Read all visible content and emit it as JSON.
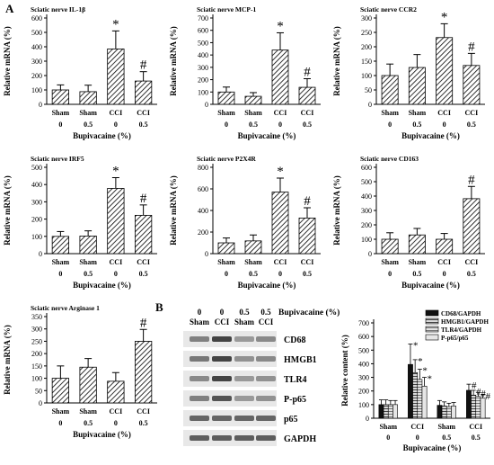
{
  "panel_labels": {
    "a": "A",
    "b": "B"
  },
  "colors": {
    "hatch": "#000000",
    "bar_fill": "#ffffff",
    "blot_bg": "#e8e8e8",
    "band": "#3a3a3a"
  },
  "chart_data": [
    {
      "type": "bar",
      "title": "Sciatic nerve IL-1β",
      "ylabel": "Relative mRNA (%)",
      "xlabel": "Bupivacaine (%)",
      "ylim": [
        0,
        600
      ],
      "yticks": [
        0,
        100,
        200,
        300,
        400,
        500,
        600
      ],
      "categories": [
        {
          "group": "Sham",
          "dose": "0"
        },
        {
          "group": "Sham",
          "dose": "0.5"
        },
        {
          "group": "CCI",
          "dose": "0"
        },
        {
          "group": "CCI",
          "dose": "0.5"
        }
      ],
      "values": [
        100,
        88,
        385,
        162
      ],
      "errors": [
        35,
        45,
        125,
        65
      ],
      "annotations": [
        "",
        "",
        "*",
        "#"
      ]
    },
    {
      "type": "bar",
      "title": "Sciatic nerve MCP-1",
      "ylabel": "Relative mRNA (%)",
      "xlabel": "Bupivacaine (%)",
      "ylim": [
        0,
        700
      ],
      "yticks": [
        0,
        100,
        200,
        300,
        400,
        500,
        600,
        700
      ],
      "categories": [
        {
          "group": "Sham",
          "dose": "0"
        },
        {
          "group": "Sham",
          "dose": "0.5"
        },
        {
          "group": "CCI",
          "dose": "0"
        },
        {
          "group": "CCI",
          "dose": "0.5"
        }
      ],
      "values": [
        100,
        65,
        440,
        138
      ],
      "errors": [
        40,
        30,
        140,
        70
      ],
      "annotations": [
        "",
        "",
        "*",
        "#"
      ]
    },
    {
      "type": "bar",
      "title": "Sciatic nerve CCR2",
      "ylabel": "Relative mRNA (%)",
      "xlabel": "Bupivacaine (%)",
      "ylim": [
        0,
        300
      ],
      "yticks": [
        0,
        50,
        100,
        150,
        200,
        250,
        300
      ],
      "categories": [
        {
          "group": "Sham",
          "dose": "0"
        },
        {
          "group": "Sham",
          "dose": "0.5"
        },
        {
          "group": "CCI",
          "dose": "0"
        },
        {
          "group": "CCI",
          "dose": "0.5"
        }
      ],
      "values": [
        100,
        128,
        232,
        135
      ],
      "errors": [
        40,
        45,
        48,
        42
      ],
      "annotations": [
        "",
        "",
        "*",
        "#"
      ]
    },
    {
      "type": "bar",
      "title": "Sciatic nerve IRF5",
      "ylabel": "Relative mRNA (%)",
      "xlabel": "Bupivacaine (%)",
      "ylim": [
        0,
        500
      ],
      "yticks": [
        0,
        100,
        200,
        300,
        400,
        500
      ],
      "categories": [
        {
          "group": "Sham",
          "dose": "0"
        },
        {
          "group": "Sham",
          "dose": "0.5"
        },
        {
          "group": "CCI",
          "dose": "0"
        },
        {
          "group": "CCI",
          "dose": "0.5"
        }
      ],
      "values": [
        100,
        102,
        378,
        222
      ],
      "errors": [
        28,
        30,
        62,
        60
      ],
      "annotations": [
        "",
        "",
        "*",
        "#"
      ]
    },
    {
      "type": "bar",
      "title": "Sciatic nerve P2X4R",
      "ylabel": "Relative mRNA (%)",
      "xlabel": "Bupivacaine (%)",
      "ylim": [
        0,
        800
      ],
      "yticks": [
        0,
        200,
        400,
        600,
        800
      ],
      "categories": [
        {
          "group": "Sham",
          "dose": "0"
        },
        {
          "group": "Sham",
          "dose": "0.5"
        },
        {
          "group": "CCI",
          "dose": "0"
        },
        {
          "group": "CCI",
          "dose": "0.5"
        }
      ],
      "values": [
        100,
        118,
        570,
        330
      ],
      "errors": [
        45,
        55,
        130,
        95
      ],
      "annotations": [
        "",
        "",
        "*",
        "#"
      ]
    },
    {
      "type": "bar",
      "title": "Sciatic nerve CD163",
      "ylabel": "Relative mRNA (%)",
      "xlabel": "Bupivacaine (%)",
      "ylim": [
        0,
        600
      ],
      "yticks": [
        0,
        100,
        200,
        300,
        400,
        500,
        600
      ],
      "categories": [
        {
          "group": "Sham",
          "dose": "0"
        },
        {
          "group": "Sham",
          "dose": "0.5"
        },
        {
          "group": "CCI",
          "dose": "0"
        },
        {
          "group": "CCI",
          "dose": "0.5"
        }
      ],
      "values": [
        100,
        130,
        100,
        382
      ],
      "errors": [
        45,
        45,
        40,
        85
      ],
      "annotations": [
        "",
        "",
        "",
        "#"
      ]
    },
    {
      "type": "bar",
      "title": "Sciatic nerve Arginase 1",
      "ylabel": "Relative mRNA (%)",
      "xlabel": "Bupivacaine (%)",
      "ylim": [
        0,
        350
      ],
      "yticks": [
        0,
        50,
        100,
        150,
        200,
        250,
        300,
        350
      ],
      "categories": [
        {
          "group": "Sham",
          "dose": "0"
        },
        {
          "group": "Sham",
          "dose": "0.5"
        },
        {
          "group": "CCI",
          "dose": "0"
        },
        {
          "group": "CCI",
          "dose": "0.5"
        }
      ],
      "values": [
        100,
        145,
        88,
        250
      ],
      "errors": [
        50,
        35,
        35,
        48
      ],
      "annotations": [
        "",
        "",
        "",
        "#"
      ]
    },
    {
      "type": "bar",
      "ylabel": "Relative content (%)",
      "xlabel": "Bupivacaine (%)",
      "ylim": [
        0,
        700
      ],
      "yticks": [
        0,
        100,
        200,
        300,
        400,
        500,
        600,
        700
      ],
      "legend_position": "top-right",
      "categories": [
        {
          "group": "Sham",
          "dose": "0"
        },
        {
          "group": "CCI",
          "dose": "0"
        },
        {
          "group": "Sham",
          "dose": "0.5"
        },
        {
          "group": "CCI",
          "dose": "0.5"
        }
      ],
      "series": [
        {
          "name": "CD68/GAPDH",
          "values": [
            100,
            395,
            95,
            205
          ],
          "errors": [
            35,
            150,
            35,
            45
          ],
          "annotations": [
            "",
            "*",
            "",
            "#"
          ]
        },
        {
          "name": "HMGB1/GAPDH",
          "values": [
            100,
            335,
            90,
            170
          ],
          "errors": [
            35,
            95,
            30,
            35
          ],
          "annotations": [
            "",
            "*",
            "",
            "#"
          ]
        },
        {
          "name": "TLR4/GAPDH",
          "values": [
            100,
            285,
            85,
            160
          ],
          "errors": [
            30,
            75,
            25,
            30
          ],
          "annotations": [
            "",
            "*",
            "",
            "#"
          ]
        },
        {
          "name": "P-p65/p65",
          "values": [
            100,
            235,
            90,
            148
          ],
          "errors": [
            30,
            65,
            25,
            25
          ],
          "annotations": [
            "",
            "*",
            "",
            "#"
          ]
        }
      ]
    }
  ],
  "blot": {
    "header": {
      "dose_labels": [
        "0",
        "0",
        "0.5",
        "0.5"
      ],
      "group_labels": [
        "Sham",
        "CCI",
        "Sham",
        "CCI"
      ],
      "title": "Bupivacaine (%)"
    },
    "rows": [
      {
        "label": "CD68",
        "intensity": [
          0.6,
          0.95,
          0.45,
          0.55
        ]
      },
      {
        "label": "HMGB1",
        "intensity": [
          0.65,
          0.95,
          0.5,
          0.55
        ]
      },
      {
        "label": "TLR4",
        "intensity": [
          0.55,
          0.95,
          0.45,
          0.5
        ]
      },
      {
        "label": "P-p65",
        "intensity": [
          0.6,
          0.85,
          0.45,
          0.5
        ]
      },
      {
        "label": "p65",
        "intensity": [
          0.75,
          0.75,
          0.75,
          0.75
        ]
      },
      {
        "label": "GAPDH",
        "intensity": [
          0.8,
          0.8,
          0.8,
          0.8
        ]
      }
    ]
  }
}
